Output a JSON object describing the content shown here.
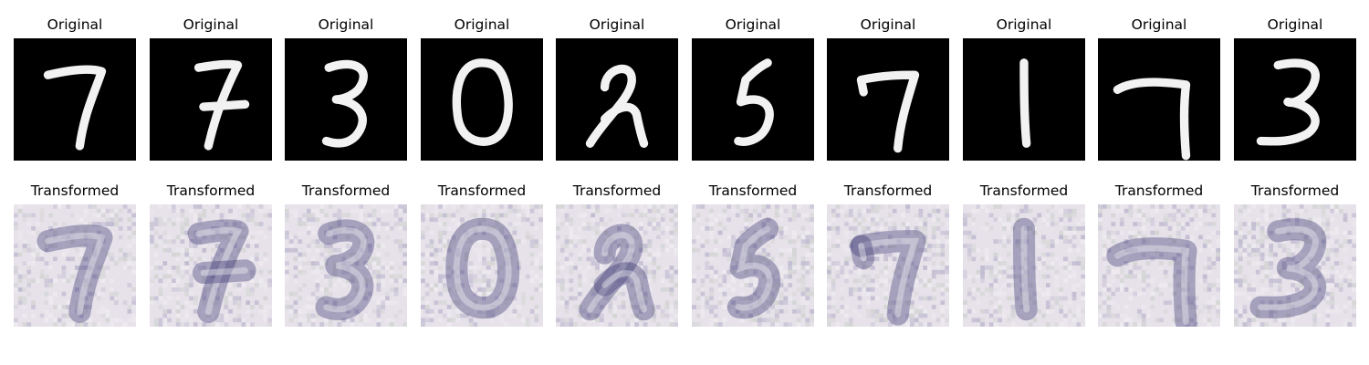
{
  "rows": [
    {
      "title": "Original",
      "count": 10
    },
    {
      "title": "Transformed",
      "count": 10
    }
  ],
  "digits": [
    "7",
    "7",
    "3",
    "0",
    "2",
    "5",
    "7",
    "1",
    "7",
    "3"
  ],
  "colors": {
    "original_bg": "#000000",
    "original_stroke": "#f2f2f2",
    "transformed_bg": "#e7e2ea",
    "transformed_tint_dark": "#3b3570",
    "transformed_tint_mid": "#6e6a9a",
    "transformed_tint_green": "#a9b8a4"
  }
}
